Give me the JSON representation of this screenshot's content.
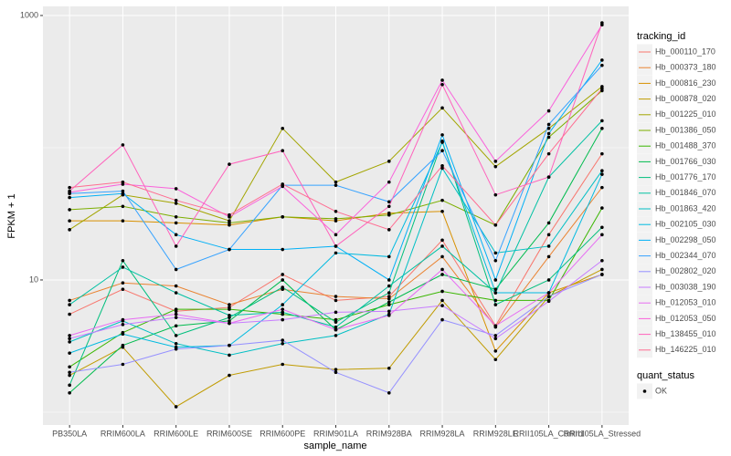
{
  "chart_data": {
    "type": "line",
    "x_label": "sample_name",
    "y_label": "FPKM + 1",
    "log_y": true,
    "grid": true,
    "background": "#EBEBEB",
    "ylim": [
      0.8,
      1172
    ],
    "yticks": [
      10,
      1000
    ],
    "y_minor_gridlines": [
      1,
      100
    ],
    "point_color": "#000000",
    "categories": [
      "PB350LA",
      "RRIM600LA",
      "RRIM600LE",
      "RRIM600SE",
      "RRIM600PE",
      "RRIM901LA",
      "RRIM928BA",
      "RRIM928LA",
      "RRIM928LE",
      "RRII105LA_Control",
      "RRII105LA_Stressed"
    ],
    "legend_title": "tracking_id",
    "legend_position": "right",
    "series": [
      {
        "name": "Hb_000110_170",
        "color": "#F8766D",
        "values": [
          5.5,
          8.5,
          5.8,
          6.2,
          11,
          7,
          7.5,
          20,
          4.5,
          22,
          90
        ]
      },
      {
        "name": "Hb_000373_180",
        "color": "#EA8331",
        "values": [
          7,
          9.5,
          9,
          6.5,
          8.5,
          7.5,
          7.2,
          15,
          4.4,
          15,
          50
        ]
      },
      {
        "name": "Hb_000816_230",
        "color": "#D89000",
        "values": [
          28,
          28,
          27,
          26,
          30,
          28,
          32,
          33,
          2.9,
          8,
          11
        ]
      },
      {
        "name": "Hb_000878_020",
        "color": "#C09B00",
        "values": [
          1.9,
          3.1,
          1.1,
          1.9,
          2.3,
          2.1,
          2.15,
          7,
          2.5,
          7.5,
          12
        ]
      },
      {
        "name": "Hb_001225_010",
        "color": "#A3A500",
        "values": [
          24,
          44,
          38,
          28,
          140,
          55,
          79,
          200,
          72,
          140,
          290
        ]
      },
      {
        "name": "Hb_001386_050",
        "color": "#7CAE00",
        "values": [
          34,
          36,
          30,
          27,
          30,
          29,
          31,
          40,
          26,
          120,
          270
        ]
      },
      {
        "name": "Hb_001488_370",
        "color": "#39B600",
        "values": [
          2.2,
          4,
          6,
          6,
          5.5,
          5,
          6.5,
          8.2,
          7,
          7,
          35
        ]
      },
      {
        "name": "Hb_001766_030",
        "color": "#00BB4E",
        "values": [
          1.4,
          3.2,
          4.5,
          4.9,
          10,
          4.2,
          6.8,
          11,
          8.5,
          27,
          140
        ]
      },
      {
        "name": "Hb_001776_170",
        "color": "#00BF7D",
        "values": [
          1.6,
          14,
          3.8,
          5.2,
          8.8,
          4.8,
          8,
          112,
          6.5,
          10,
          25
        ]
      },
      {
        "name": "Hb_001846_070",
        "color": "#00C1A3",
        "values": [
          6.5,
          12.5,
          8,
          5.4,
          5.7,
          4.4,
          9,
          18,
          8,
          60,
          160
        ]
      },
      {
        "name": "Hb_001863_420",
        "color": "#00BFC4",
        "values": [
          3.4,
          4.9,
          3.3,
          2.7,
          3.3,
          3.8,
          5.5,
          70,
          16,
          18,
          67
        ]
      },
      {
        "name": "Hb_002105_030",
        "color": "#00BAE0",
        "values": [
          2.8,
          3.9,
          3.1,
          3.2,
          6.5,
          16,
          15,
          110,
          8,
          8,
          63
        ]
      },
      {
        "name": "Hb_002298_050",
        "color": "#00B0F6",
        "values": [
          42,
          45,
          22,
          17,
          17,
          18,
          10,
          125,
          10,
          128,
          460
        ]
      },
      {
        "name": "Hb_002344_070",
        "color": "#35A2FF",
        "values": [
          45,
          47,
          12,
          17,
          52,
          52,
          39,
          95,
          14,
          150,
          420
        ]
      },
      {
        "name": "Hb_002802_020",
        "color": "#9590FF",
        "values": [
          2,
          2.3,
          3,
          3.2,
          3.5,
          2,
          1.4,
          5,
          3.8,
          7.5,
          11
        ]
      },
      {
        "name": "Hb_003038_190",
        "color": "#C77CFF",
        "values": [
          3.6,
          4.6,
          5.2,
          4.7,
          5,
          5.7,
          5.8,
          6.4,
          3.6,
          6.9,
          14
        ]
      },
      {
        "name": "Hb_012053_010",
        "color": "#E76BF3",
        "values": [
          3.8,
          5,
          5.5,
          4.7,
          6,
          4.2,
          5.4,
          12,
          4.5,
          8,
          22
        ]
      },
      {
        "name": "Hb_012053_050",
        "color": "#FA62DB",
        "values": [
          46,
          53,
          49,
          30,
          51,
          22,
          55,
          324,
          79,
          190,
          850
        ]
      },
      {
        "name": "Hb_138455_010",
        "color": "#FF62BC",
        "values": [
          47,
          105,
          18,
          75,
          95,
          18,
          36,
          300,
          44,
          60,
          880
        ]
      },
      {
        "name": "Hb_146225_010",
        "color": "#FF6C91",
        "values": [
          50,
          55,
          40,
          31,
          53,
          33,
          24,
          73,
          26,
          90,
          280
        ]
      }
    ],
    "legend2": {
      "title": "quant_status",
      "entries": [
        "OK"
      ]
    }
  }
}
